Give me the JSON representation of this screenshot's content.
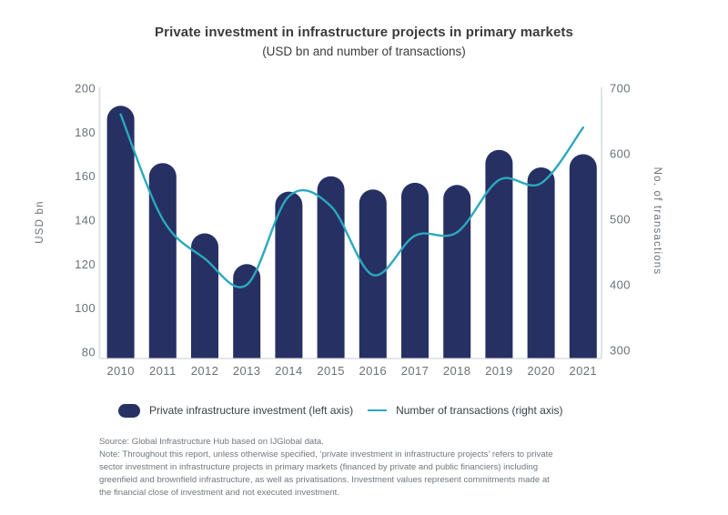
{
  "footer": {
    "source": "Source: Global Infrastructure Hub based on IJGlobal data.",
    "note": "Note: Throughout this report, unless otherwise specified, ‘private investment in infrastructure projects’ refers to private sector investment in infrastructure projects in primary markets (financed by private and public financiers) including greenfield and brownfield infrastructure, as well as privatisations. Investment values represent commitments made at the financial close of investment and not executed investment."
  },
  "colors": {
    "background": "#ffffff",
    "bar": "#263063",
    "line": "#2ba8be",
    "axis_line": "#dde2e6",
    "tick_text": "#6a7177",
    "title_text": "#3b3b3b",
    "legend_text": "#3a4148",
    "footer_text": "#6f7880"
  },
  "chart_data": {
    "type": "bar",
    "title": "Private investment in infrastructure projects in primary markets",
    "subtitle": "(USD bn and number of transactions)",
    "categories": [
      "2010",
      "2011",
      "2012",
      "2013",
      "2014",
      "2015",
      "2016",
      "2017",
      "2018",
      "2019",
      "2020",
      "2021"
    ],
    "series": [
      {
        "name": "Private infrastructure investment (left axis)",
        "kind": "bar",
        "axis": "left",
        "values": [
          192,
          166,
          134,
          120,
          153,
          160,
          154,
          157,
          156,
          172,
          164,
          170
        ]
      },
      {
        "name": "Number of transactions (right axis)",
        "kind": "line",
        "axis": "right",
        "values": [
          660,
          500,
          440,
          400,
          535,
          520,
          415,
          475,
          480,
          560,
          555,
          640
        ]
      }
    ],
    "left_axis": {
      "label": "USD bn",
      "min": 80,
      "max": 200,
      "ticks": [
        200,
        180,
        160,
        140,
        120,
        100,
        80
      ]
    },
    "right_axis": {
      "label": "No. of transactions",
      "min": 300,
      "max": 700,
      "ticks": [
        700,
        600,
        500,
        400,
        300
      ]
    },
    "grid": false,
    "legend_position": "bottom"
  }
}
